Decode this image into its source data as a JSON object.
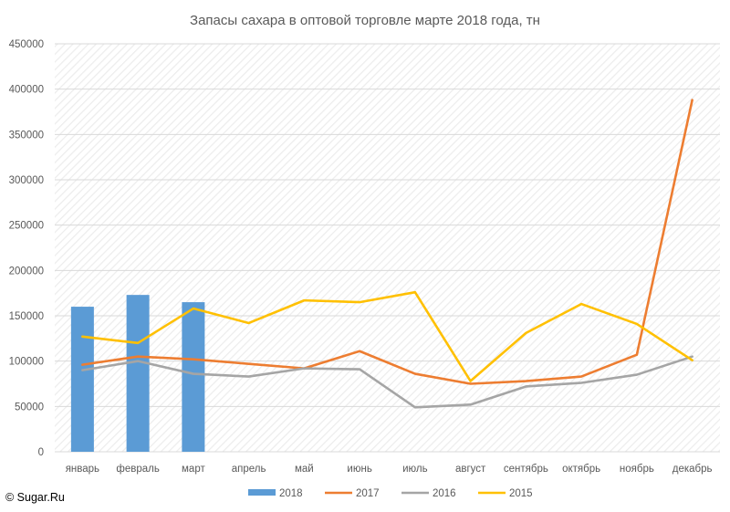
{
  "chart_data": {
    "type": "bar+line",
    "title": "Запасы сахара в оптовой торговле марте 2018 года, тн",
    "categories": [
      "январь",
      "февраль",
      "март",
      "апрель",
      "май",
      "июнь",
      "июль",
      "август",
      "сентябрь",
      "октябрь",
      "ноябрь",
      "декабрь"
    ],
    "ylim": [
      0,
      450000
    ],
    "yticks": [
      0,
      50000,
      100000,
      150000,
      200000,
      250000,
      300000,
      350000,
      400000,
      450000
    ],
    "grid": true,
    "legend_position": "bottom",
    "bar_series": {
      "name": "2018",
      "color": "#5b9bd5",
      "values": [
        160000,
        173000,
        165000
      ]
    },
    "series": [
      {
        "name": "2017",
        "color": "#ed7d31",
        "values": [
          96000,
          105000,
          102000,
          97000,
          92000,
          111000,
          86000,
          75000,
          78000,
          83000,
          107000,
          388000
        ]
      },
      {
        "name": "2016",
        "color": "#a5a5a5",
        "values": [
          90000,
          100000,
          86000,
          83000,
          92000,
          91000,
          49000,
          52000,
          72000,
          76000,
          85000,
          105000
        ]
      },
      {
        "name": "2015",
        "color": "#ffc000",
        "values": [
          127000,
          120000,
          158000,
          142000,
          167000,
          165000,
          176000,
          78000,
          131000,
          163000,
          141000,
          101000
        ]
      }
    ]
  },
  "footer": {
    "copyright": "© Sugar.Ru"
  }
}
